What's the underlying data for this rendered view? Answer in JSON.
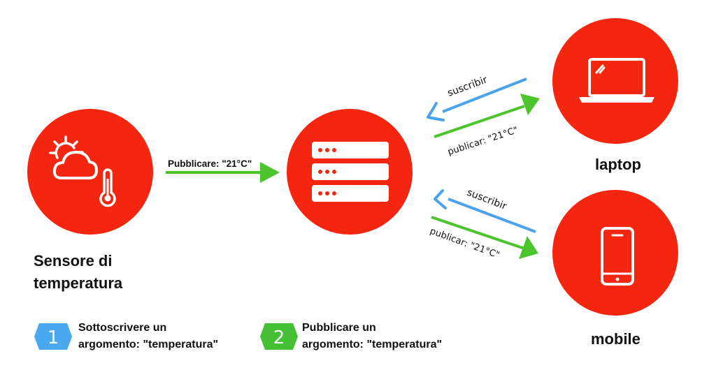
{
  "colors": {
    "node": "#f4260f",
    "publish": "#4cc52c",
    "subscribe": "#4aa3ea",
    "legend_1": "#4aa8ee",
    "legend_2": "#45bf33"
  },
  "nodes": {
    "sensor": {
      "label_line1": "Sensore di",
      "label_line2": "temperatura",
      "icon": "weather-thermometer-icon"
    },
    "broker": {
      "icon": "server-icon"
    },
    "laptop": {
      "label": "laptop",
      "icon": "laptop-icon"
    },
    "mobile": {
      "label": "mobile",
      "icon": "smartphone-icon"
    }
  },
  "arrows": {
    "sensor_to_broker": {
      "label": "Pubblicare: \"21°C\""
    },
    "laptop_subscribe": {
      "label": "suscribir"
    },
    "laptop_publish": {
      "label": "publicar: \"21°C\""
    },
    "mobile_subscribe": {
      "label": "suscribir"
    },
    "mobile_publish": {
      "label": "publicar:  \"21°C\""
    }
  },
  "legend": [
    {
      "number": "1",
      "line1": "Sottoscrivere un",
      "line2": "argomento: \"temperatura\""
    },
    {
      "number": "2",
      "line1": "Pubblicare un",
      "line2": "argomento: \"temperatura\""
    }
  ]
}
